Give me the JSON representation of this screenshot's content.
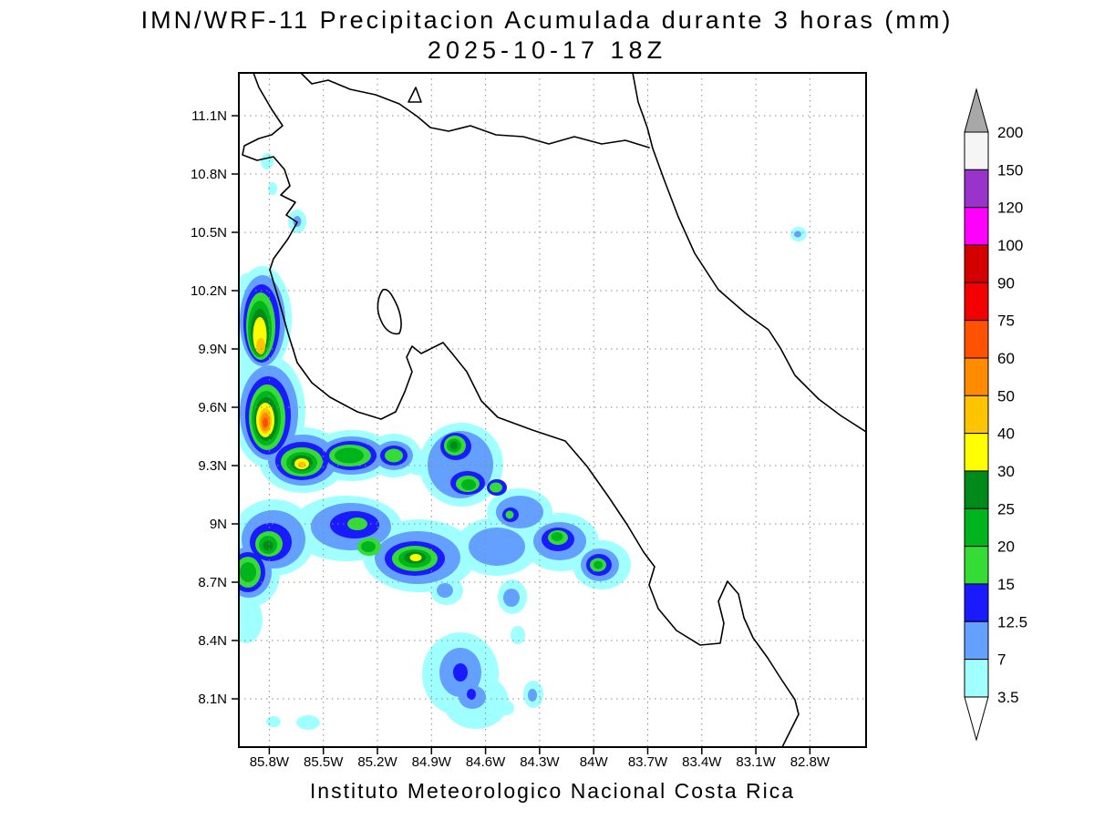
{
  "title": {
    "line1": "IMN/WRF-11 Precipitacion Acumulada durante 3 horas (mm)",
    "line2": "2025-10-17 18Z"
  },
  "footer": "Instituto Meteorologico Nacional Costa Rica",
  "map": {
    "x_ticks": [
      "85.8W",
      "85.5W",
      "85.2W",
      "84.9W",
      "84.6W",
      "84.3W",
      "84W",
      "83.7W",
      "83.4W",
      "83.1W",
      "82.8W"
    ],
    "y_ticks": [
      "11.1N",
      "10.8N",
      "10.5N",
      "10.2N",
      "9.9N",
      "9.6N",
      "9.3N",
      "9N",
      "8.7N",
      "8.4N",
      "8.1N"
    ]
  },
  "colorbar": {
    "labels": [
      "200",
      "150",
      "120",
      "100",
      "90",
      "75",
      "60",
      "50",
      "40",
      "30",
      "25",
      "20",
      "15",
      "12.5",
      "7",
      "3.5"
    ],
    "colors_top_to_bottom": [
      "#f5f5f5",
      "#9933cc",
      "#ff00ff",
      "#d40000",
      "#f40000",
      "#ff5200",
      "#ff8c00",
      "#ffc400",
      "#ffff00",
      "#008a1a",
      "#00b41e",
      "#36dc36",
      "#1a1aff",
      "#64a0ff",
      "#a0ffff"
    ],
    "arrow_top_color": "#a8a8a8",
    "arrow_bottom_color": "#ffffff"
  },
  "chart_data": {
    "type": "heatmap",
    "title": "IMN/WRF-11 Precipitacion Acumulada durante 3 horas (mm)",
    "valid_time": "2025-10-17 18Z",
    "units": "mm",
    "region": "Costa Rica",
    "x_ticks_lon": [
      "85.8W",
      "85.5W",
      "85.2W",
      "84.9W",
      "84.6W",
      "84.3W",
      "84W",
      "83.7W",
      "83.4W",
      "83.1W",
      "82.8W"
    ],
    "y_ticks_lat": [
      "11.1N",
      "10.8N",
      "10.5N",
      "10.2N",
      "9.9N",
      "9.6N",
      "9.3N",
      "9N",
      "8.7N",
      "8.4N",
      "8.1N"
    ],
    "shading_levels_mm": [
      3.5,
      7,
      12.5,
      15,
      20,
      25,
      30,
      40,
      50,
      60,
      75,
      90,
      100,
      120,
      150,
      200
    ],
    "level_colors_low_to_high": [
      "#a0ffff",
      "#64a0ff",
      "#1a1aff",
      "#36dc36",
      "#00b41e",
      "#008a1a",
      "#ffff00",
      "#ffc400",
      "#ff8c00",
      "#ff5200",
      "#f40000",
      "#d40000",
      "#ff00ff",
      "#9933cc",
      "#f5f5f5",
      "#a8a8a8"
    ],
    "legend_position": "right",
    "grid": true,
    "summary": "Heaviest 3-h accumulations (orange cores, 50-75 mm) on the Pacific side near 85.7W 9.6N and 85.7W 9.9N; widespread 3.5-30 mm shading in a band along 8.9N-9.4N from 86W to 84W; isolated light (3.5-15 mm) cells in the south near 84.7W 8.4N; mostly dry Caribbean side."
  }
}
